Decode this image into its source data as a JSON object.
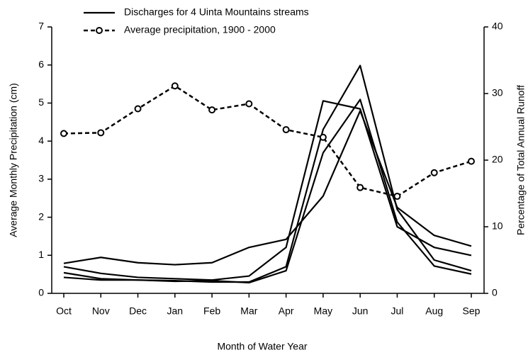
{
  "chart_data": {
    "type": "line",
    "xlabel": "Month of Water Year",
    "ylabel": "Average Monthly Precipitation (cm)",
    "y2label": "Percentage of Total Annual Runoff",
    "categories": [
      "Oct",
      "Nov",
      "Dec",
      "Jan",
      "Feb",
      "Mar",
      "Apr",
      "May",
      "Jun",
      "Jul",
      "Aug",
      "Sep"
    ],
    "ylim": [
      0,
      7
    ],
    "yticks": [
      0,
      1,
      2,
      3,
      4,
      5,
      6,
      7
    ],
    "y2lim": [
      0,
      40
    ],
    "y2ticks": [
      0,
      10,
      20,
      30,
      40
    ],
    "series": [
      {
        "name": "Discharges for 4 Uinta Mountains streams",
        "color": "#000000",
        "axis": "y2",
        "values": [
          [
            4.5,
            5.4,
            4.6,
            4.3,
            4.6,
            6.9,
            8.1,
            14.6,
            27.4,
            12.9,
            8.7,
            7.1
          ],
          [
            4.0,
            3.0,
            2.4,
            2.2,
            2.0,
            2.6,
            6.9,
            28.9,
            27.7,
            10.0,
            6.9,
            5.7
          ],
          [
            3.1,
            2.2,
            2.0,
            1.9,
            1.7,
            1.7,
            4.0,
            24.6,
            34.2,
            12.6,
            5.0,
            3.4
          ],
          [
            2.4,
            2.0,
            2.0,
            1.8,
            1.9,
            1.6,
            3.4,
            21.1,
            29.1,
            10.7,
            4.1,
            2.9
          ]
        ]
      },
      {
        "name": "Average precipitation, 1900 - 2000",
        "color": "#000000",
        "axis": "y",
        "values": [
          4.2,
          4.22,
          4.85,
          5.45,
          4.82,
          4.98,
          4.3,
          4.1,
          2.78,
          2.55,
          3.17,
          3.47
        ]
      }
    ]
  }
}
